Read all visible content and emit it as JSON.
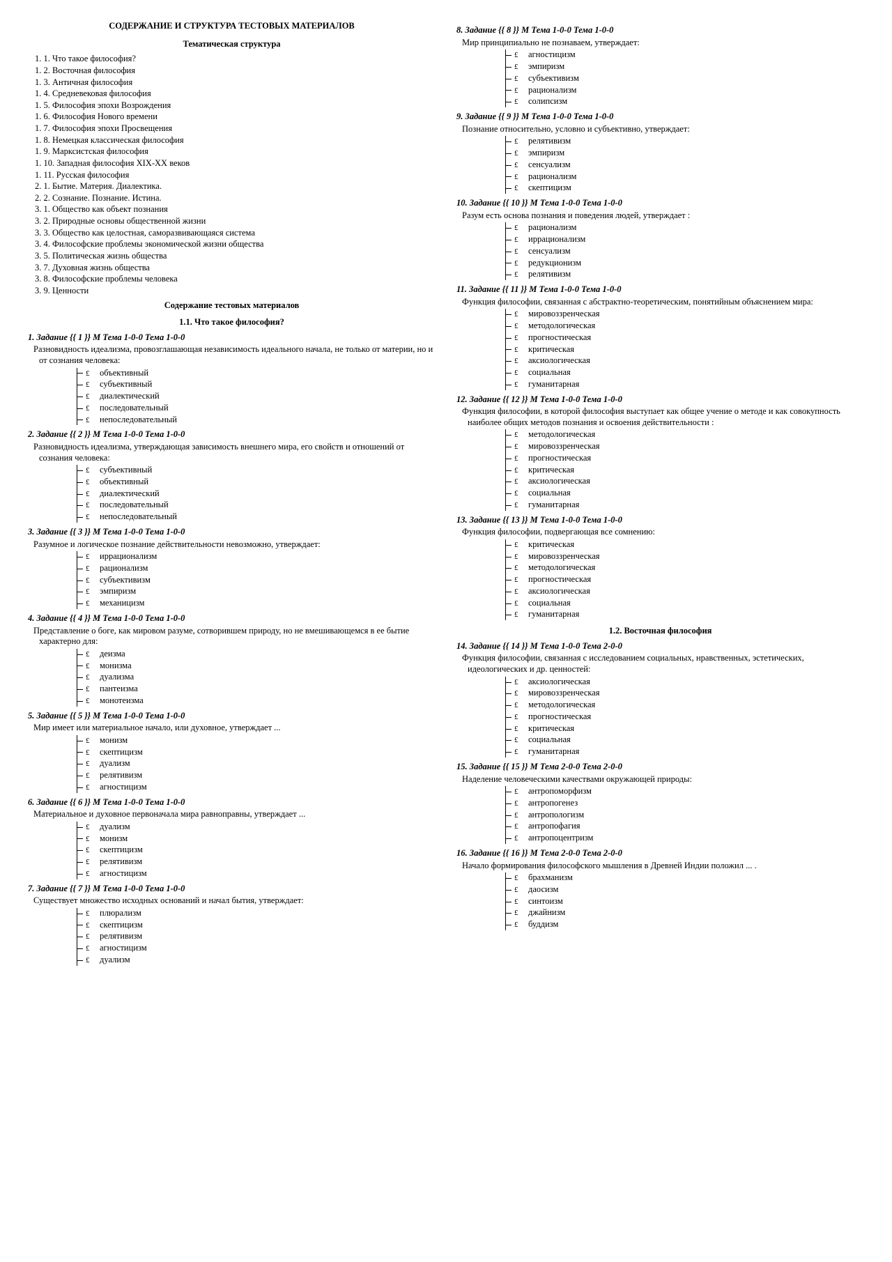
{
  "headings": {
    "main": "СОДЕРЖАНИЕ И СТРУКТУРА ТЕСТОВЫХ МАТЕРИАЛОВ",
    "theme_struct": "Тематическая структура",
    "content_tests": "Содержание тестовых материалов",
    "section_1_1": "1.1. Что такое философия?",
    "section_1_2": "1.2. Восточная философия"
  },
  "toc": [
    "1. 1. Что такое философия?",
    "1. 2. Восточная философия",
    "1. 3. Античная философия",
    "1. 4. Средневековая философия",
    "1. 5. Философия эпохи Возрождения",
    "1. 6. Философия Нового времени",
    "1. 7. Философия эпохи Просвещения",
    "1. 8. Немецкая классическая философия",
    "1. 9. Марксистская философия",
    "1. 10. Западная философия XIX-XX веков",
    "1. 11. Русская философия",
    "2. 1. Бытие. Материя. Диалектика.",
    "2. 2. Сознание. Познание. Истина.",
    "3. 1. Общество как объект познания",
    "3. 2. Природные основы общественной жизни",
    "3. 3. Общество как целостная, саморазвивающаяся система",
    "3. 4. Философские проблемы экономической жизни общества",
    "3. 5. Политическая жизнь общества",
    "3. 7. Духовная жизнь общества",
    "3. 8. Философские проблемы человека",
    "3. 9. Ценности"
  ],
  "tasks_left": [
    {
      "title": "1. Задание {{ 1 }}   М Тема 1-0-0 Тема 1-0-0",
      "q": "Разновидность идеализма, провозглашающая независимость идеального начала, не только от материи, но и от сознания человека:",
      "opts": [
        "объективный",
        "субъективный",
        "диалектический",
        "последовательный",
        "непоследовательный"
      ]
    },
    {
      "title": "2. Задание {{ 2 }}   М Тема 1-0-0 Тема 1-0-0",
      "q": "Разновидность идеализма, утверждающая зависимость внешнего мира, его свойств и отношений от сознания человека:",
      "opts": [
        "субъективный",
        "объективный",
        "диалектический",
        "последовательный",
        "непоследовательный"
      ]
    },
    {
      "title": "3. Задание {{ 3 }}   М Тема 1-0-0 Тема 1-0-0",
      "q": "Разумное и логическое познание действительности невозможно, утверждает:",
      "opts": [
        "иррационализм",
        "рационализм",
        "субъективизм",
        "эмпиризм",
        "механицизм"
      ]
    },
    {
      "title": "4. Задание {{ 4 }}   М Тема 1-0-0 Тема 1-0-0",
      "q": "Представление о боге, как мировом разуме, сотворившем природу, но не вмешивающемся в ее бытие характерно для:",
      "opts": [
        "деизма",
        "монизма",
        "дуализма",
        "пантеизма",
        "монотеизма"
      ]
    },
    {
      "title": "5. Задание {{ 5 }}   М Тема 1-0-0 Тема 1-0-0",
      "q": "Мир имеет или материальное начало, или духовное, утверждает ...",
      "opts": [
        "монизм",
        "скептицизм",
        "дуализм",
        "релятивизм",
        "агностицизм"
      ]
    },
    {
      "title": "6. Задание {{ 6 }}   М Тема 1-0-0 Тема 1-0-0",
      "q": "Материальное и духовное первоначала мира равноправны, утверждает ...",
      "opts": [
        "дуализм",
        "монизм",
        "скептицизм",
        "релятивизм",
        "агностицизм"
      ]
    },
    {
      "title": "7. Задание {{ 7 }}   М Тема 1-0-0 Тема 1-0-0",
      "q": "Существует множество исходных оснований и начал бытия, утверждает:",
      "opts": [
        "плюрализм",
        "скептицизм",
        "релятивизм",
        "агностицизм",
        "дуализм"
      ]
    }
  ],
  "tasks_right": [
    {
      "title": "8. Задание {{ 8 }}   М Тема 1-0-0 Тема 1-0-0",
      "q": "Мир принципиально не познаваем, утверждает:",
      "opts": [
        "агностицизм",
        "эмпиризм",
        "субъективизм",
        "рационализм",
        "солипсизм"
      ]
    },
    {
      "title": "9. Задание {{ 9 }}   М Тема 1-0-0 Тема 1-0-0",
      "q": "Познание относительно, условно и субъективно, утверждает:",
      "opts": [
        "релятивизм",
        "эмпиризм",
        "сенсуализм",
        "рационализм",
        "скептицизм"
      ]
    },
    {
      "title": "10. Задание {{ 10 }}   М Тема 1-0-0 Тема 1-0-0",
      "q": "Разум есть основа познания и поведения людей, утверждает :",
      "opts": [
        "рационализм",
        "иррационализм",
        "сенсуализм",
        "редукционизм",
        "релятивизм"
      ]
    },
    {
      "title": "11. Задание {{ 11 }}   М Тема 1-0-0 Тема 1-0-0",
      "q": "Функция философии, связанная с абстрактно-теоретическим, понятийным объяснением мира:",
      "opts": [
        "мировоззренческая",
        "методологическая",
        "прогностическая",
        "критическая",
        "аксиологическая",
        "социальная",
        "гуманитарная"
      ]
    },
    {
      "title": "12. Задание {{ 12 }}   М Тема 1-0-0 Тема 1-0-0",
      "q": "Функция философии, в которой философия выступает как общее учение о методе и как совокупность наиболее общих методов познания и освоения действительности :",
      "opts": [
        "методологическая",
        "мировоззренческая",
        "прогностическая",
        "критическая",
        "аксиологическая",
        "социальная",
        "гуманитарная"
      ]
    },
    {
      "title": "13. Задание {{ 13 }}   М Тема 1-0-0 Тема 1-0-0",
      "q": "Функция философии, подвергающая все сомнению:",
      "opts": [
        "критическая",
        "мировоззренческая",
        "методологическая",
        "прогностическая",
        "аксиологическая",
        "социальная",
        "гуманитарная"
      ]
    }
  ],
  "tasks_right2": [
    {
      "title": "14. Задание {{ 14 }}   М Тема 1-0-0 Тема 2-0-0",
      "q": "Функция философии, связанная с исследованием социальных, нравственных, эстетических, идеологических и др. ценностей:",
      "opts": [
        "аксиологическая",
        "мировоззренческая",
        "методологическая",
        "прогностическая",
        "критическая",
        "социальная",
        "гуманитарная"
      ]
    },
    {
      "title": "15. Задание {{ 15 }}   М Тема 2-0-0 Тема 2-0-0",
      "q": "Наделение человеческими качествами окружающей природы:",
      "opts": [
        "антропоморфизм",
        "антропогенез",
        "антропологизм",
        "антропофагия",
        "антропоцентризм"
      ]
    },
    {
      "title": "16. Задание {{ 16 }}   М Тема 2-0-0 Тема 2-0-0",
      "q": "Начало формирования философского мышления в Древней Индии положил ... .",
      "opts": [
        "брахманизм",
        "даосизм",
        "синтоизм",
        "джайнизм",
        "буддизм"
      ]
    }
  ]
}
